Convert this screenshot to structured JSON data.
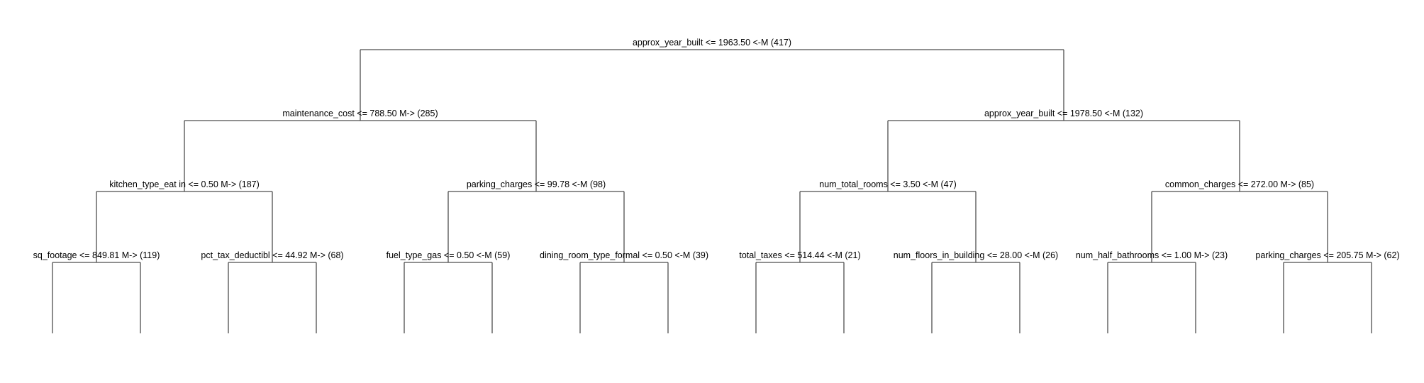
{
  "tree": {
    "root": {
      "label": "approx_year_built <= 1963.50 <-M (417)",
      "children": [
        {
          "label": "maintenance_cost <= 788.50 M-> (285)",
          "children": [
            {
              "label": "kitchen_type_eat in <= 0.50 M-> (187)",
              "children": [
                {
                  "label": "sq_footage <= 849.81 M-> (119)"
                },
                {
                  "label": "pct_tax_deductibl <= 44.92 M-> (68)"
                }
              ]
            },
            {
              "label": "parking_charges <= 99.78 <-M (98)",
              "children": [
                {
                  "label": "fuel_type_gas <= 0.50 <-M (59)"
                },
                {
                  "label": "dining_room_type_formal <= 0.50 <-M (39)"
                }
              ]
            }
          ]
        },
        {
          "label": "approx_year_built <= 1978.50 <-M (132)",
          "children": [
            {
              "label": "num_total_rooms <= 3.50 <-M (47)",
              "children": [
                {
                  "label": "total_taxes <= 514.44 <-M (21)"
                },
                {
                  "label": "num_floors_in_building <= 28.00 <-M (26)"
                }
              ]
            },
            {
              "label": "common_charges <= 272.00 M-> (85)",
              "children": [
                {
                  "label": "num_half_bathrooms <= 1.00 M-> (23)"
                },
                {
                  "label": "parking_charges <= 205.75 M-> (62)"
                }
              ]
            }
          ]
        }
      ]
    }
  }
}
